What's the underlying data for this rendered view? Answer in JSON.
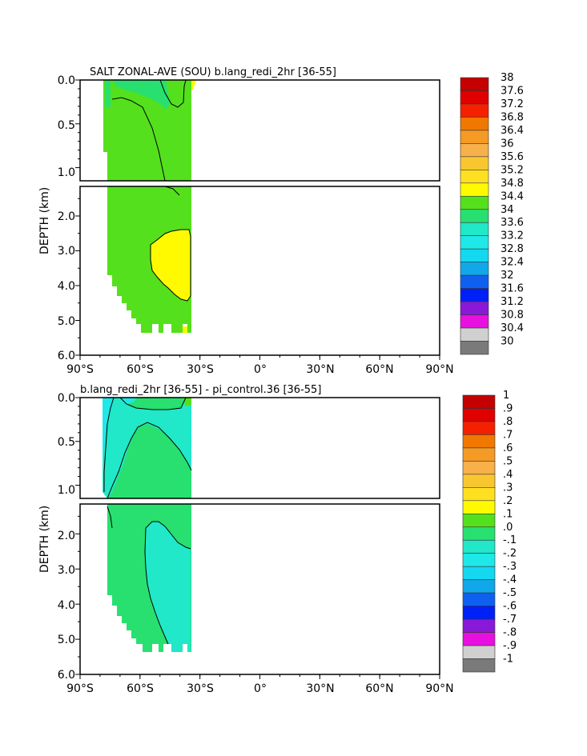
{
  "chart_data": [
    {
      "type": "heatmap",
      "title": "SALT ZONAL-AVE (SOU) b.lang_redi_2hr [36-55]",
      "ylabel": "DEPTH (km)",
      "xlim": [
        -90,
        90
      ],
      "ylim": [
        0.0,
        6.0
      ],
      "y_break_km": 1.15,
      "x_ticks": [
        "90°S",
        "60°S",
        "30°S",
        "0°",
        "30°N",
        "60°N",
        "90°N"
      ],
      "y_ticks_top": [
        "0.0",
        "0.5",
        "1.0"
      ],
      "y_ticks_bottom": [
        "2.0",
        "3.0",
        "4.0",
        "5.0",
        "6.0"
      ],
      "colorbar": {
        "labels": [
          "38",
          "37.6",
          "37.2",
          "36.8",
          "36.4",
          "36",
          "35.6",
          "35.2",
          "34.8",
          "34.4",
          "34",
          "33.6",
          "33.2",
          "32.8",
          "32.4",
          "32",
          "31.6",
          "31.2",
          "30.8",
          "30.4",
          "30"
        ],
        "colors": [
          "#c40000",
          "#e00000",
          "#f52000",
          "#f07800",
          "#f59a25",
          "#f8b04a",
          "#f8c730",
          "#ffe020",
          "#fffa00",
          "#54e01c",
          "#28e070",
          "#20e8c8",
          "#1ee8e8",
          "#14d8f0",
          "#10a8e8",
          "#1060f0",
          "#0020f8",
          "#8a18d8",
          "#e810e0",
          "#d0d0d0",
          "#7a7a7a"
        ]
      },
      "regions": [
        {
          "name": "background-salinity",
          "value_range": [
            34.4,
            34.8
          ],
          "lat_range": [
            -77,
            -34
          ]
        },
        {
          "name": "deep-high-salinity",
          "value_range": [
            34.8,
            35.2
          ],
          "lat_range": [
            -53,
            -35
          ],
          "depth_range": [
            2.4,
            4.4
          ]
        },
        {
          "name": "surface-high-salinity",
          "value_range": [
            34.8,
            35.2
          ],
          "lat_range": [
            -35,
            -33
          ],
          "depth_range": [
            0.0,
            0.3
          ]
        },
        {
          "name": "shallow-fresh",
          "value_range": [
            34.0,
            34.4
          ],
          "lat_range": [
            -70,
            -48
          ],
          "depth_range": [
            0.0,
            0.3
          ]
        }
      ]
    },
    {
      "type": "heatmap",
      "title": "b.lang_redi_2hr [36-55] - pi_control.36 [36-55]",
      "ylabel": "DEPTH (km)",
      "xlim": [
        -90,
        90
      ],
      "ylim": [
        0.0,
        6.0
      ],
      "y_break_km": 1.15,
      "x_ticks": [
        "90°S",
        "60°S",
        "30°S",
        "0°",
        "30°N",
        "60°N",
        "90°N"
      ],
      "y_ticks_top": [
        "0.0",
        "0.5",
        "1.0"
      ],
      "y_ticks_bottom": [
        "2.0",
        "3.0",
        "4.0",
        "5.0",
        "6.0"
      ],
      "colorbar": {
        "labels": [
          "1",
          ".9",
          ".8",
          ".7",
          ".6",
          ".5",
          ".4",
          ".3",
          ".2",
          ".1",
          ".0",
          "-.1",
          "-.2",
          "-.3",
          "-.4",
          "-.5",
          "-.6",
          "-.7",
          "-.8",
          "-.9",
          "-1"
        ],
        "colors": [
          "#c40000",
          "#e00000",
          "#f52000",
          "#f07800",
          "#f59a25",
          "#f8b04a",
          "#f8c730",
          "#ffe020",
          "#fffa00",
          "#54e01c",
          "#28e070",
          "#20e8c8",
          "#1ee8e8",
          "#14d8f0",
          "#10a8e8",
          "#1060f0",
          "#0020f8",
          "#8a18d8",
          "#e810e0",
          "#d0d0d0",
          "#7a7a7a"
        ]
      },
      "regions": [
        {
          "name": "background-difference",
          "value_range": [
            0.0,
            0.1
          ],
          "lat_range": [
            -77,
            -34
          ]
        },
        {
          "name": "deep-negative-difference",
          "value_range": [
            -0.1,
            0.0
          ],
          "lat_range": [
            -53,
            -35
          ],
          "depth_range": [
            1.8,
            5.4
          ]
        },
        {
          "name": "shallow-negative-difference",
          "value_range": [
            -0.1,
            0.0
          ],
          "lat_range": [
            -77,
            -35
          ],
          "depth_range": [
            0.0,
            0.9
          ]
        },
        {
          "name": "surface-strong-negative",
          "value_range": [
            -0.2,
            -0.1
          ],
          "lat_range": [
            -75,
            -60
          ],
          "depth_range": [
            0.0,
            0.1
          ]
        }
      ]
    }
  ]
}
